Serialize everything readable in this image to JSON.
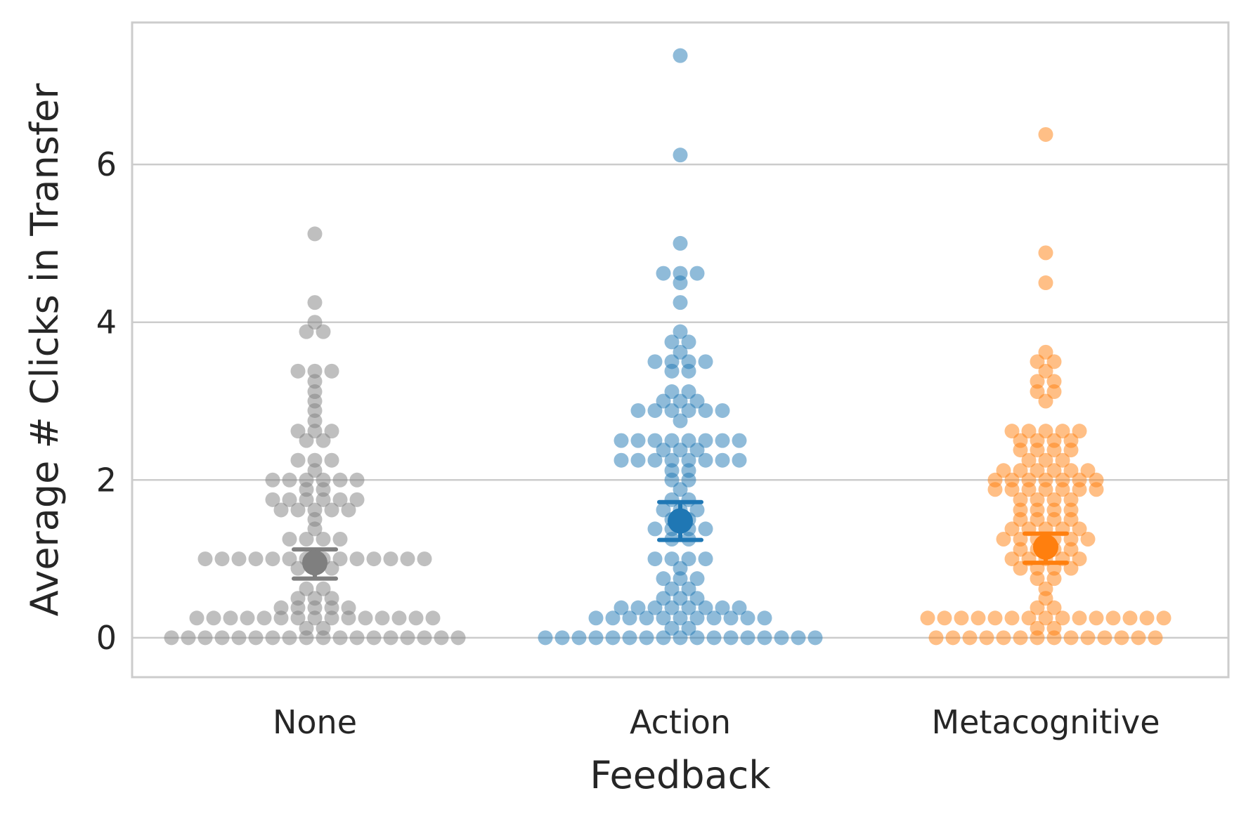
{
  "chart_data": {
    "type": "scatter",
    "subtype": "swarm",
    "xlabel": "Feedback",
    "ylabel": "Average # Clicks in Transfer",
    "ylim": [
      -0.5,
      7.8
    ],
    "yticks": [
      0,
      2,
      4,
      6
    ],
    "grid": "horizontal",
    "categories": [
      "None",
      "Action",
      "Metacognitive"
    ],
    "series": [
      {
        "category": "None",
        "color": "#7f7f7f",
        "mean": 0.95,
        "ci": [
          0.75,
          1.12
        ],
        "values": [
          5.12,
          4.25,
          4.0,
          3.88,
          3.88,
          3.38,
          3.38,
          3.38,
          3.25,
          3.12,
          3.0,
          2.88,
          2.75,
          2.62,
          2.62,
          2.62,
          2.5,
          2.5,
          2.25,
          2.25,
          2.25,
          2.12,
          2.0,
          2.0,
          2.0,
          2.0,
          2.0,
          2.0,
          1.88,
          1.88,
          1.75,
          1.75,
          1.75,
          1.75,
          1.75,
          1.75,
          1.62,
          1.62,
          1.62,
          1.62,
          1.62,
          1.5,
          1.38,
          1.25,
          1.25,
          1.25,
          1.25,
          1.0,
          1.0,
          1.0,
          1.0,
          1.0,
          1.0,
          1.0,
          1.0,
          1.0,
          1.0,
          1.0,
          1.0,
          1.0,
          1.0,
          0.88,
          0.88,
          0.88,
          0.62,
          0.62,
          0.5,
          0.5,
          0.5,
          0.38,
          0.38,
          0.38,
          0.38,
          0.38,
          0.25,
          0.25,
          0.25,
          0.25,
          0.25,
          0.25,
          0.25,
          0.25,
          0.25,
          0.25,
          0.25,
          0.25,
          0.25,
          0.25,
          0.25,
          0.12,
          0.12,
          0.0,
          0.0,
          0.0,
          0.0,
          0.0,
          0.0,
          0.0,
          0.0,
          0.0,
          0.0,
          0.0,
          0.0,
          0.0,
          0.0,
          0.0,
          0.0,
          0.0,
          0.0
        ]
      },
      {
        "category": "Action",
        "color": "#1f77b4",
        "mean": 1.48,
        "ci": [
          1.24,
          1.72
        ],
        "values": [
          7.38,
          6.12,
          5.0,
          4.62,
          4.62,
          4.62,
          4.5,
          4.25,
          3.88,
          3.75,
          3.75,
          3.62,
          3.5,
          3.5,
          3.5,
          3.5,
          3.38,
          3.38,
          3.12,
          3.12,
          3.0,
          3.0,
          3.0,
          2.88,
          2.88,
          2.88,
          2.88,
          2.88,
          2.88,
          2.75,
          2.5,
          2.5,
          2.5,
          2.5,
          2.5,
          2.5,
          2.5,
          2.5,
          2.38,
          2.38,
          2.38,
          2.25,
          2.25,
          2.25,
          2.25,
          2.25,
          2.25,
          2.25,
          2.25,
          2.12,
          2.12,
          2.0,
          2.0,
          1.88,
          1.75,
          1.75,
          1.62,
          1.62,
          1.62,
          1.5,
          1.5,
          1.38,
          1.38,
          1.38,
          1.38,
          1.25,
          1.25,
          1.0,
          1.0,
          1.0,
          1.0,
          0.88,
          0.75,
          0.75,
          0.75,
          0.62,
          0.62,
          0.5,
          0.5,
          0.5,
          0.38,
          0.38,
          0.38,
          0.38,
          0.38,
          0.38,
          0.38,
          0.38,
          0.25,
          0.25,
          0.25,
          0.25,
          0.25,
          0.25,
          0.25,
          0.25,
          0.25,
          0.25,
          0.25,
          0.12,
          0.12,
          0.0,
          0.0,
          0.0,
          0.0,
          0.0,
          0.0,
          0.0,
          0.0,
          0.0,
          0.0,
          0.0,
          0.0,
          0.0,
          0.0,
          0.0,
          0.0,
          0.0
        ]
      },
      {
        "category": "Metacognitive",
        "color": "#ff7f0e",
        "mean": 1.15,
        "ci": [
          0.95,
          1.32
        ],
        "values": [
          6.38,
          4.88,
          4.5,
          3.62,
          3.5,
          3.5,
          3.38,
          3.25,
          3.25,
          3.12,
          3.12,
          3.0,
          2.62,
          2.62,
          2.62,
          2.62,
          2.62,
          2.5,
          2.5,
          2.5,
          2.5,
          2.38,
          2.38,
          2.38,
          2.38,
          2.25,
          2.25,
          2.25,
          2.12,
          2.12,
          2.12,
          2.12,
          2.12,
          2.12,
          2.0,
          2.0,
          2.0,
          2.0,
          2.0,
          2.0,
          2.0,
          1.88,
          1.88,
          1.88,
          1.88,
          1.88,
          1.88,
          1.88,
          1.75,
          1.75,
          1.75,
          1.75,
          1.62,
          1.62,
          1.62,
          1.62,
          1.5,
          1.5,
          1.5,
          1.5,
          1.38,
          1.38,
          1.38,
          1.38,
          1.38,
          1.25,
          1.25,
          1.25,
          1.25,
          1.25,
          1.25,
          1.12,
          1.12,
          1.12,
          1.12,
          1.0,
          1.0,
          1.0,
          1.0,
          1.0,
          0.88,
          0.88,
          0.88,
          0.88,
          0.75,
          0.75,
          0.62,
          0.5,
          0.38,
          0.38,
          0.25,
          0.25,
          0.25,
          0.25,
          0.25,
          0.25,
          0.25,
          0.25,
          0.25,
          0.25,
          0.25,
          0.25,
          0.25,
          0.25,
          0.25,
          0.12,
          0.12,
          0.0,
          0.0,
          0.0,
          0.0,
          0.0,
          0.0,
          0.0,
          0.0,
          0.0,
          0.0,
          0.0,
          0.0,
          0.0,
          0.0
        ]
      }
    ]
  }
}
